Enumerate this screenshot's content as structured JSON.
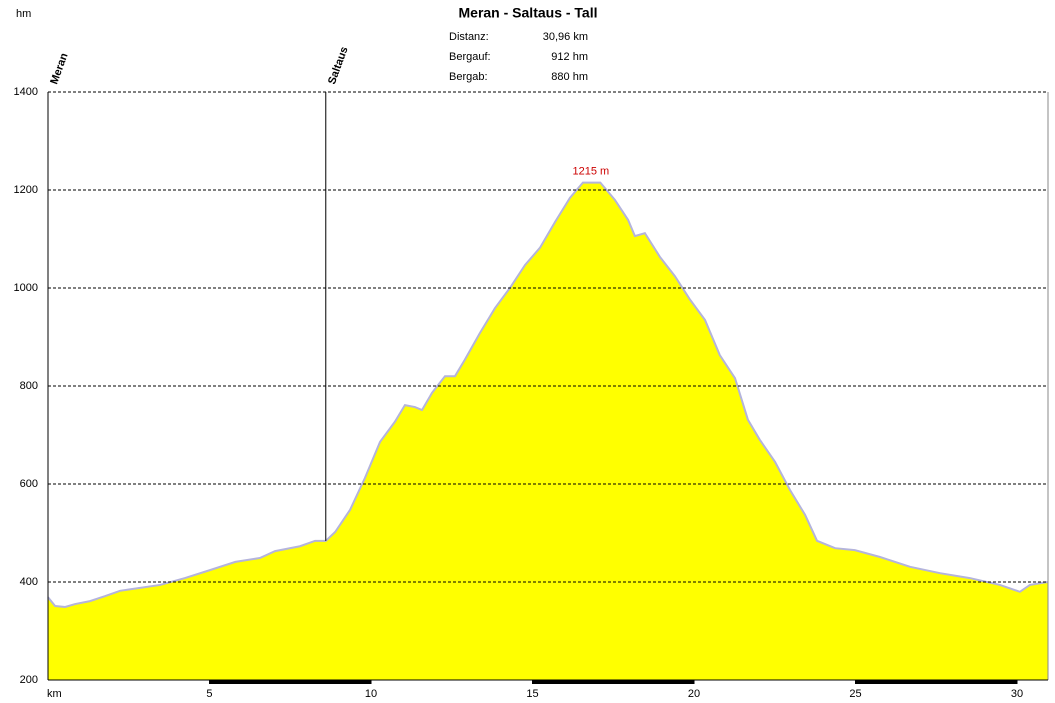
{
  "chart_data": {
    "type": "area",
    "title": "Meran - Saltaus - Tall",
    "stats": [
      {
        "label": "Distanz:",
        "value": "30,96 km"
      },
      {
        "label": "Bergauf:",
        "value": "912 hm"
      },
      {
        "label": "Bergab:",
        "value": "880 hm"
      }
    ],
    "y_label": "hm",
    "x_label": "km",
    "color": "#ffff00",
    "line_color": "#b4b4dc",
    "peak_label": "1215 m",
    "peak_color": "#cc0000",
    "waypoints": [
      {
        "name": "Meran",
        "x": 0
      },
      {
        "name": "Saltaus",
        "x": 8.6
      }
    ],
    "x": [
      0,
      0.22,
      0.53,
      0.84,
      1.3,
      1.76,
      2.23,
      2.85,
      3.47,
      4.24,
      5.0,
      5.8,
      6.56,
      7.03,
      7.8,
      8.27,
      8.6,
      8.89,
      9.35,
      9.81,
      10.28,
      10.74,
      11.05,
      11.36,
      11.58,
      11.89,
      12.29,
      12.6,
      12.9,
      13.37,
      13.84,
      14.3,
      14.77,
      15.23,
      15.7,
      16.16,
      16.56,
      17.1,
      17.55,
      17.96,
      18.17,
      18.48,
      18.95,
      19.41,
      19.88,
      20.34,
      20.8,
      21.27,
      21.67,
      22.04,
      22.51,
      22.97,
      23.44,
      23.81,
      24.37,
      24.98,
      25.76,
      26.69,
      27.62,
      28.54,
      29.47,
      30.09,
      30.4,
      30.96
    ],
    "values": [
      369,
      351,
      349,
      355,
      361,
      371,
      382,
      388,
      394,
      408,
      424,
      441,
      449,
      463,
      473,
      484,
      484,
      502,
      547,
      612,
      686,
      727,
      761,
      757,
      751,
      786,
      820,
      820,
      853,
      908,
      959,
      1000,
      1047,
      1082,
      1135,
      1184,
      1215,
      1215,
      1180,
      1139,
      1106,
      1112,
      1063,
      1024,
      976,
      935,
      863,
      816,
      731,
      690,
      645,
      588,
      537,
      484,
      469,
      465,
      451,
      431,
      418,
      408,
      394,
      380,
      394,
      400
    ],
    "xlim": [
      0,
      30.96
    ],
    "ylim": [
      200,
      1400
    ],
    "xticks": [
      5,
      10,
      15,
      20,
      25,
      30
    ],
    "yticks": [
      200,
      400,
      600,
      800,
      1000,
      1200,
      1400
    ],
    "grid": true
  }
}
